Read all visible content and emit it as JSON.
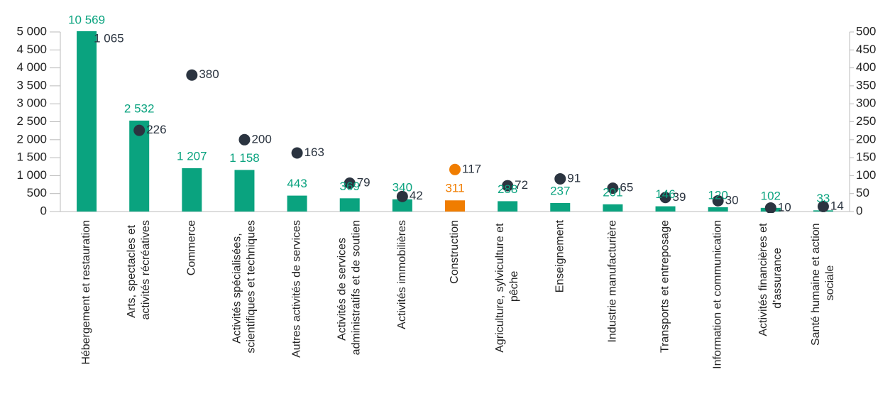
{
  "chart_data": {
    "type": "bar",
    "categories": [
      "Hébergement et restauration",
      "Arts, spectacles et activités récréatives",
      "Commerce",
      "Activités spécialisées, scientifiques et techniques",
      "Autres activités de services",
      "Activités de services administratifs et de soutien",
      "Activités immobilières",
      "Construction",
      "Agriculture, sylviculture et pêche",
      "Enseignement",
      "Industrie manufacturière",
      "Transports et entreposage",
      "Information et communication",
      "Activités financières et d'assurance",
      "Santé humaine et action sociale"
    ],
    "series": [
      {
        "values": [
          10569,
          2532,
          1207,
          1158,
          443,
          369,
          340,
          311,
          288,
          237,
          201,
          146,
          120,
          102,
          33
        ],
        "value_labels": [
          "10 569",
          "2 532",
          "1 207",
          "1 158",
          "443",
          "369",
          "340",
          "311",
          "288",
          "237",
          "201",
          "146",
          "120",
          "102",
          "33"
        ],
        "colors": [
          "#0aa37f",
          "#0aa37f",
          "#0aa37f",
          "#0aa37f",
          "#0aa37f",
          "#0aa37f",
          "#0aa37f",
          "#f07d00",
          "#0aa37f",
          "#0aa37f",
          "#0aa37f",
          "#0aa37f",
          "#0aa37f",
          "#0aa37f",
          "#0aa37f"
        ]
      },
      {
        "type": "scatter",
        "axis": "y2",
        "values": [
          1065,
          226,
          380,
          200,
          163,
          79,
          42,
          117,
          72,
          91,
          65,
          39,
          30,
          10,
          14
        ],
        "value_labels": [
          "1 065",
          "226",
          "380",
          "200",
          "163",
          "79",
          "42",
          "117",
          "72",
          "91",
          "65",
          "39",
          "30",
          "10",
          "14"
        ],
        "colors": [
          "#2b3440",
          "#2b3440",
          "#2b3440",
          "#2b3440",
          "#2b3440",
          "#2b3440",
          "#2b3440",
          "#f07d00",
          "#2b3440",
          "#2b3440",
          "#2b3440",
          "#2b3440",
          "#2b3440",
          "#2b3440",
          "#2b3440"
        ]
      }
    ],
    "ylim": [
      0,
      5000
    ],
    "yticks": [
      0,
      500,
      {
        "value": 1000,
        "label": "1 000"
      },
      {
        "value": 1500,
        "label": "1 500"
      },
      {
        "value": 2000,
        "label": "2 000"
      },
      {
        "value": 2500,
        "label": "2 500"
      },
      {
        "value": 3000,
        "label": "3 000"
      },
      {
        "value": 3500,
        "label": "3 500"
      },
      {
        "value": 4000,
        "label": "4 000"
      },
      {
        "value": 4500,
        "label": "4 500"
      },
      {
        "value": 5000,
        "label": "5 000"
      }
    ],
    "y2lim": [
      0,
      500
    ],
    "y2ticks": [
      0,
      50,
      100,
      150,
      200,
      250,
      300,
      350,
      400,
      450,
      500
    ]
  }
}
